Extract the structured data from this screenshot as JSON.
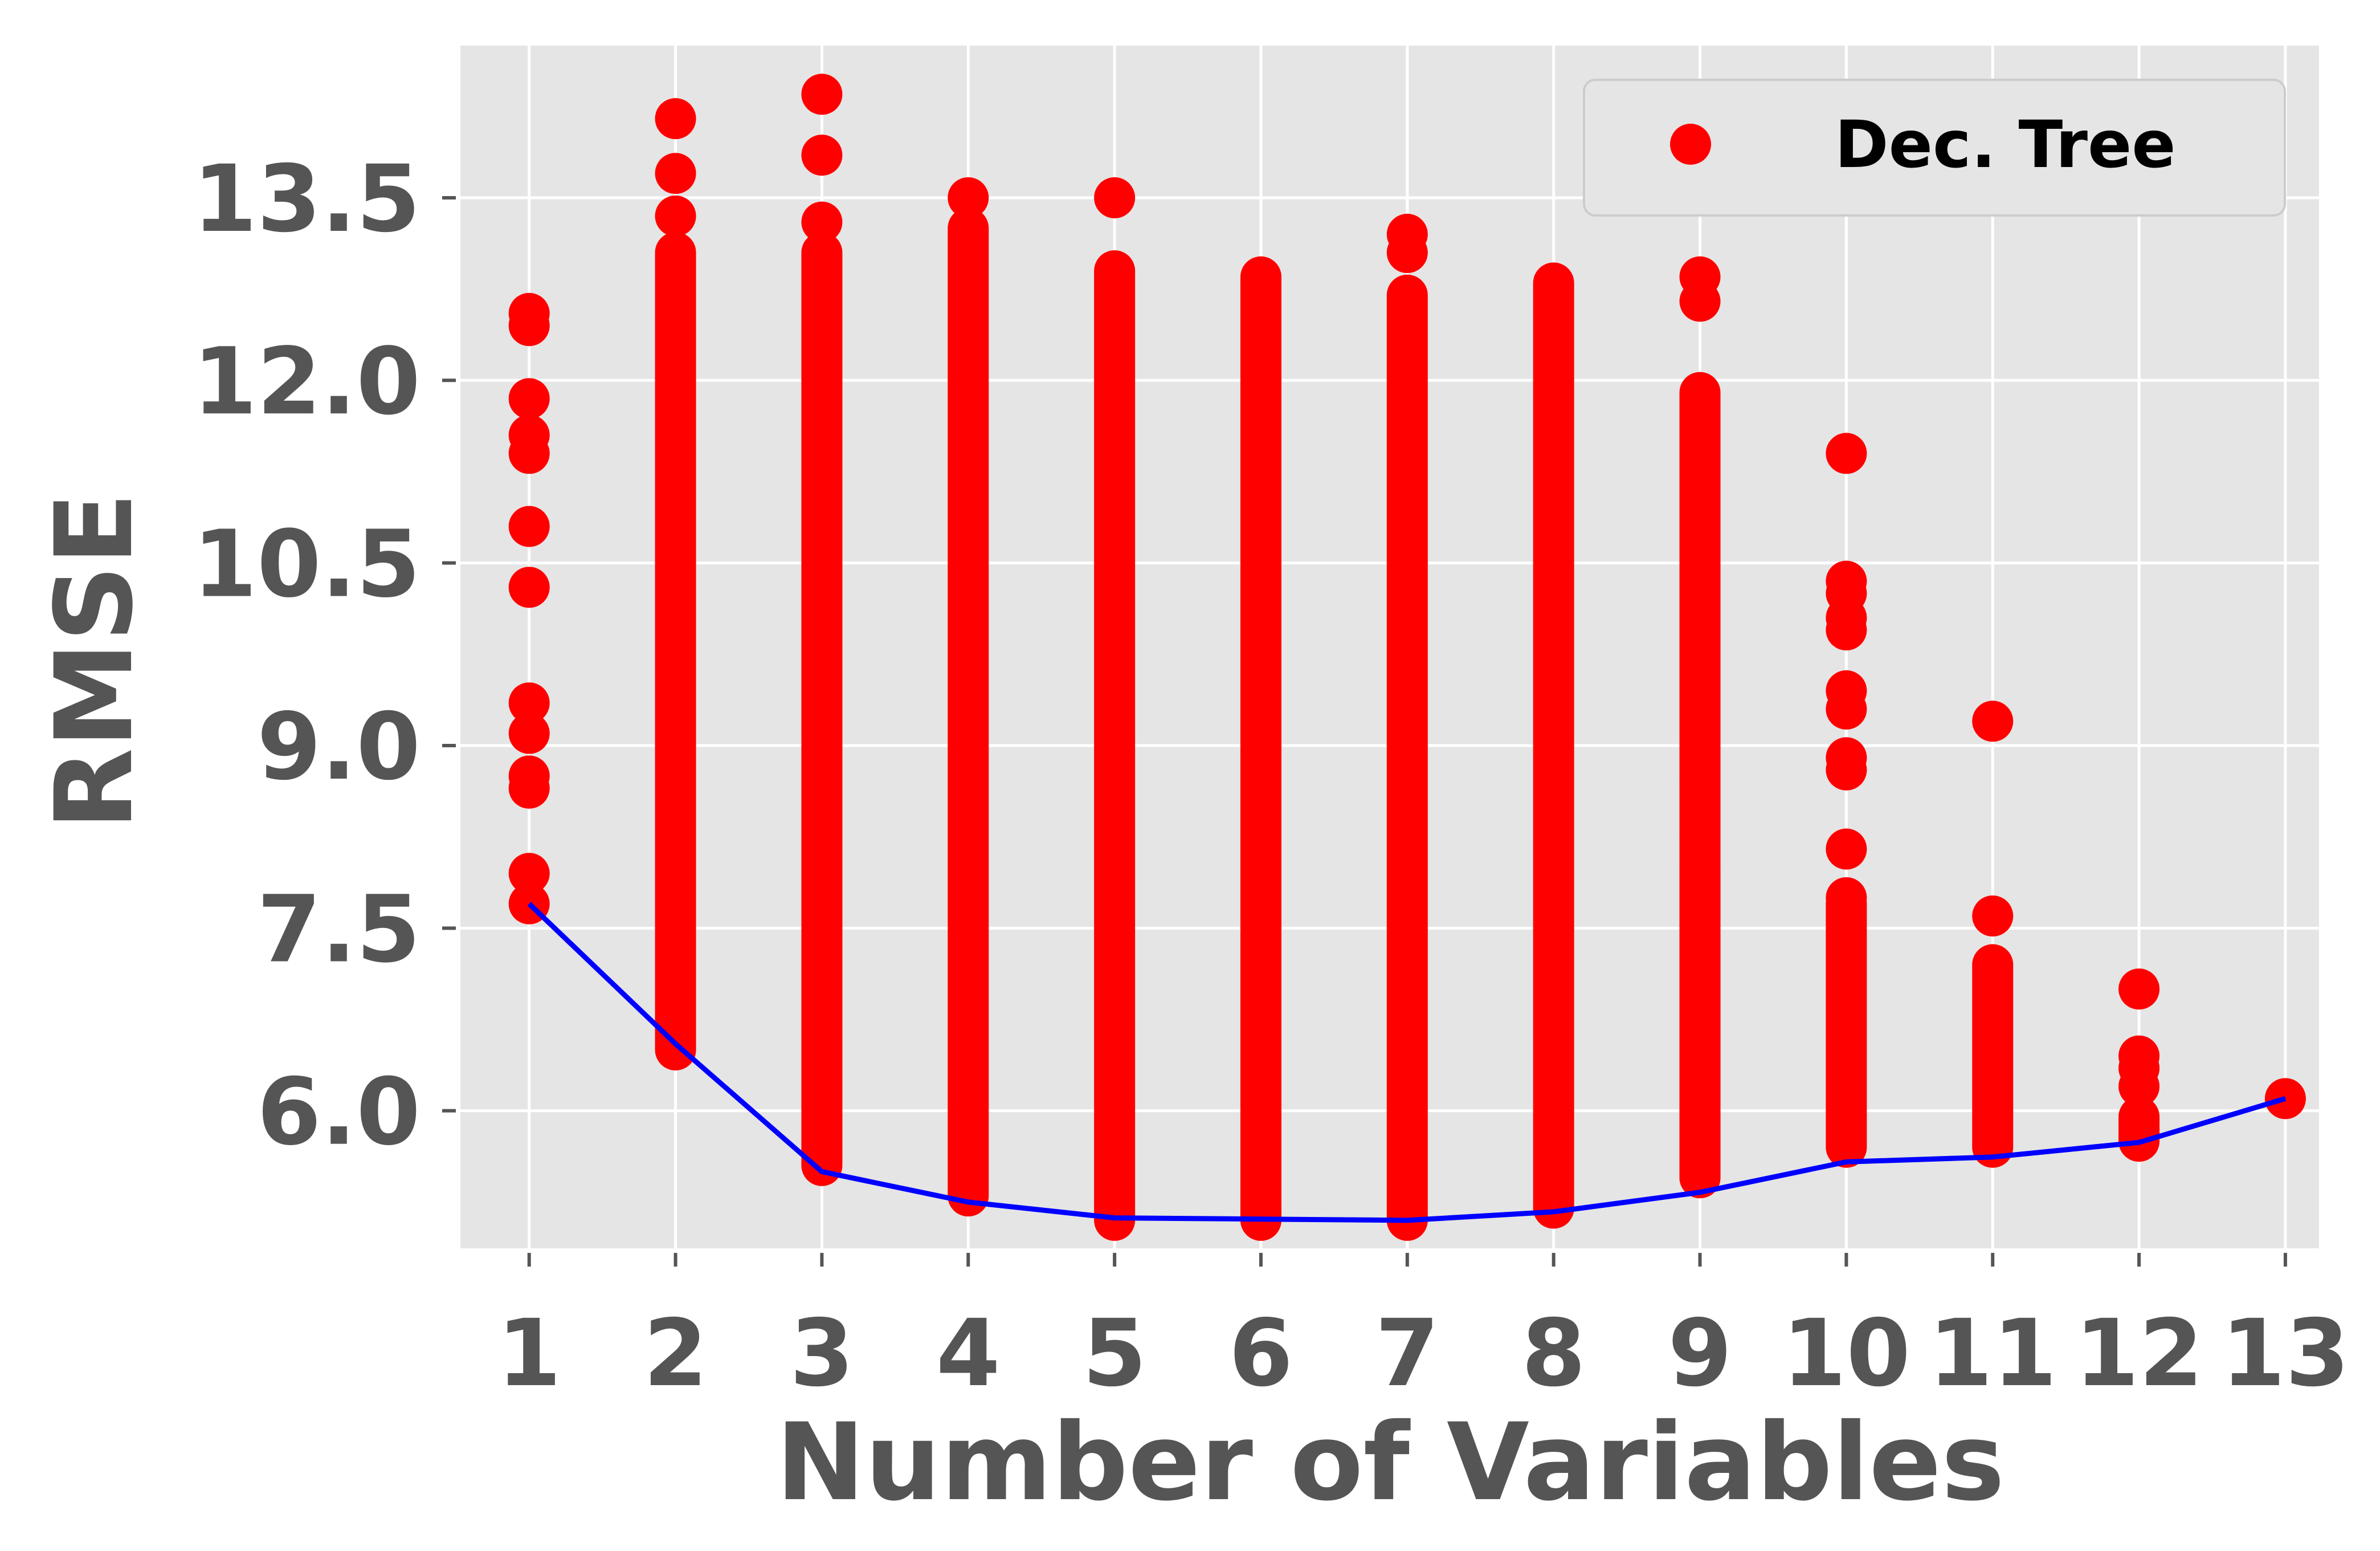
{
  "chart_data": {
    "type": "scatter",
    "title": "",
    "xlabel": "Number of Variables",
    "ylabel": "RMSE",
    "xlim": [
      0.53,
      13.23
    ],
    "ylim": [
      4.87,
      14.75
    ],
    "x_ticks": [
      1,
      2,
      3,
      4,
      5,
      6,
      7,
      8,
      9,
      10,
      11,
      12,
      13
    ],
    "y_ticks": [
      6.0,
      7.5,
      9.0,
      10.5,
      12.0,
      13.5
    ],
    "y_tick_labels": [
      "6.0",
      "7.5",
      "9.0",
      "10.5",
      "12.0",
      "13.5"
    ],
    "grid": true,
    "legend_position": "top-right",
    "colors": {
      "background": "#e5e5e5",
      "grid": "#ffffff",
      "scatter": "#ff0000",
      "line": "#0000ff",
      "text": "#555555",
      "legend_bg": "#e5e5e5",
      "legend_border": "#cccccc"
    },
    "series": [
      {
        "name": "Dec. Tree",
        "kind": "scatter",
        "points": [
          {
            "x": 1,
            "dense": [],
            "isolated": [
              12.45,
              12.55,
              11.85,
              11.55,
              11.4,
              10.8,
              10.3,
              9.35,
              9.1,
              8.75,
              8.65,
              7.95,
              7.7
            ]
          },
          {
            "x": 2,
            "dense": [
              [
                6.5,
                13.05
              ]
            ],
            "isolated": [
              14.15,
              13.7,
              13.35
            ]
          },
          {
            "x": 3,
            "dense": [
              [
                5.55,
                13.05
              ]
            ],
            "isolated": [
              14.35,
              13.85,
              13.3
            ]
          },
          {
            "x": 4,
            "dense": [
              [
                5.3,
                13.25
              ]
            ],
            "isolated": [
              13.5
            ]
          },
          {
            "x": 5,
            "dense": [
              [
                5.1,
                12.9
              ]
            ],
            "isolated": [
              13.5
            ]
          },
          {
            "x": 6,
            "dense": [
              [
                5.1,
                12.85
              ]
            ],
            "isolated": []
          },
          {
            "x": 7,
            "dense": [
              [
                5.1,
                12.7
              ]
            ],
            "isolated": [
              13.2,
              13.05
            ]
          },
          {
            "x": 8,
            "dense": [
              [
                5.2,
                12.8
              ]
            ],
            "isolated": []
          },
          {
            "x": 9,
            "dense": [
              [
                5.45,
                11.9
              ],
              [
                5.45,
                8.0
              ]
            ],
            "isolated": [
              12.85,
              12.65,
              8.25,
              8.7
            ]
          },
          {
            "x": 10,
            "dense": [
              [
                5.7,
                7.7
              ]
            ],
            "isolated": [
              11.4,
              10.35,
              10.25,
              10.05,
              9.95,
              9.45,
              9.3,
              8.9,
              8.8,
              8.15,
              7.75
            ]
          },
          {
            "x": 11,
            "dense": [
              [
                5.7,
                7.2
              ]
            ],
            "isolated": [
              9.2,
              7.6
            ]
          },
          {
            "x": 12,
            "dense": [
              [
                5.75,
                5.95
              ]
            ],
            "isolated": [
              7.0,
              6.45,
              6.35,
              6.2
            ]
          },
          {
            "x": 13,
            "dense": [],
            "isolated": [
              6.1
            ]
          }
        ]
      },
      {
        "name": "",
        "kind": "line",
        "x": [
          1,
          2,
          3,
          4,
          5,
          6,
          7,
          8,
          9,
          10,
          11,
          12,
          13
        ],
        "y": [
          7.7,
          6.55,
          5.5,
          5.25,
          5.12,
          5.11,
          5.1,
          5.17,
          5.33,
          5.58,
          5.62,
          5.74,
          6.1
        ]
      }
    ]
  }
}
